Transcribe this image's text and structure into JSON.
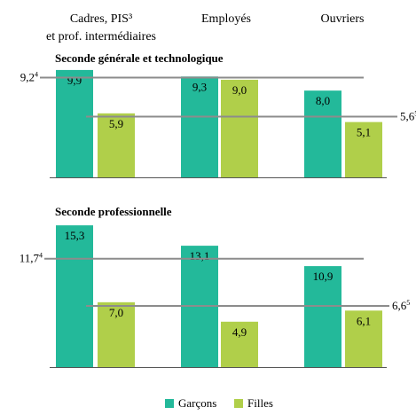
{
  "chart_data": {
    "type": "bar",
    "categories": [
      [
        "Cadres, PIS³",
        "et prof. intermédiaires"
      ],
      [
        "Employés"
      ],
      [
        "Ouvriers"
      ]
    ],
    "panels": [
      {
        "title": "Seconde générale et technologique",
        "series": [
          {
            "name": "Garçons",
            "values": [
              9.9,
              9.3,
              8.0
            ],
            "labels": [
              "9,9",
              "9,3",
              "8,0"
            ]
          },
          {
            "name": "Filles",
            "values": [
              5.9,
              9.0,
              5.1
            ],
            "labels": [
              "5,9",
              "9,0",
              "5,1"
            ]
          }
        ],
        "reference_lines": [
          {
            "value": 9.2,
            "label": "9,2",
            "sup": "4",
            "side": "left"
          },
          {
            "value": 5.6,
            "label": "5,6",
            "sup": "5",
            "side": "right"
          }
        ],
        "ylim": [
          0,
          10.2
        ]
      },
      {
        "title": "Seconde professionnelle",
        "series": [
          {
            "name": "Garçons",
            "values": [
              15.3,
              13.1,
              10.9
            ],
            "labels": [
              "15,3",
              "13,1",
              "10,9"
            ]
          },
          {
            "name": "Filles",
            "values": [
              7.0,
              4.9,
              6.1
            ],
            "labels": [
              "7,0",
              "4,9",
              "6,1"
            ]
          }
        ],
        "reference_lines": [
          {
            "value": 11.7,
            "label": "11,7",
            "sup": "4",
            "side": "left"
          },
          {
            "value": 6.6,
            "label": "6,6",
            "sup": "5",
            "side": "right"
          }
        ],
        "ylim": [
          0,
          15.3
        ]
      }
    ],
    "legend": [
      {
        "name": "Garçons",
        "color": "#23b99a"
      },
      {
        "name": "Filles",
        "color": "#b0cf4a"
      }
    ],
    "legend_position": "bottom-center",
    "grid": false
  },
  "colors": {
    "garcons": "#23b99a",
    "filles": "#b0cf4a",
    "refline": "#8c8c8c",
    "baseline": "#555555"
  }
}
